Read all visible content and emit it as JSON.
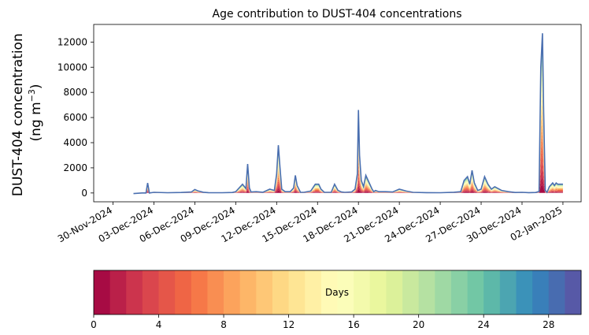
{
  "chart_data": {
    "type": "area",
    "title": "Age contribution to DUST-404 concentrations",
    "ylabel_line1": "DUST-404 concentration",
    "ylabel_line2_prefix": "(ng m",
    "ylabel_line2_sup": "−3",
    "ylabel_line2_suffix": ")",
    "xlabel": "",
    "x_range": [
      "2024-11-28T14:00",
      "2025-01-03T08:00"
    ],
    "ylim": [
      -700,
      13400
    ],
    "y_ticks": [
      0,
      2000,
      4000,
      6000,
      8000,
      10000,
      12000
    ],
    "x_ticks": [
      {
        "date": "2024-11-30",
        "label": "30-Nov-2024"
      },
      {
        "date": "2024-12-03",
        "label": "03-Dec-2024"
      },
      {
        "date": "2024-12-06",
        "label": "06-Dec-2024"
      },
      {
        "date": "2024-12-09",
        "label": "09-Dec-2024"
      },
      {
        "date": "2024-12-12",
        "label": "12-Dec-2024"
      },
      {
        "date": "2024-12-15",
        "label": "15-Dec-2024"
      },
      {
        "date": "2024-12-18",
        "label": "18-Dec-2024"
      },
      {
        "date": "2024-12-21",
        "label": "21-Dec-2024"
      },
      {
        "date": "2024-12-24",
        "label": "24-Dec-2024"
      },
      {
        "date": "2024-12-27",
        "label": "27-Dec-2024"
      },
      {
        "date": "2024-12-30",
        "label": "30-Dec-2024"
      },
      {
        "date": "2025-01-02",
        "label": "02-Jan-2025"
      }
    ],
    "series_days": 30,
    "total_line_color": "#4a6fb0",
    "total_concentration": {
      "x": [
        "2024-12-01T12:00",
        "2024-12-02T03:00",
        "2024-12-02T10:00",
        "2024-12-02T13:00",
        "2024-12-02T16:00",
        "2024-12-03T00:00",
        "2024-12-04T00:00",
        "2024-12-05T00:00",
        "2024-12-05T18:00",
        "2024-12-06T00:00",
        "2024-12-06T06:00",
        "2024-12-06T15:00",
        "2024-12-07T00:00",
        "2024-12-08T00:00",
        "2024-12-08T18:00",
        "2024-12-09T00:00",
        "2024-12-09T12:00",
        "2024-12-09T18:00",
        "2024-12-09T21:00",
        "2024-12-10T00:00",
        "2024-12-10T03:00",
        "2024-12-10T12:00",
        "2024-12-11T00:00",
        "2024-12-11T12:00",
        "2024-12-11T20:00",
        "2024-12-12T00:00",
        "2024-12-12T03:00",
        "2024-12-12T06:00",
        "2024-12-12T09:00",
        "2024-12-12T15:00",
        "2024-12-13T00:00",
        "2024-12-13T06:00",
        "2024-12-13T09:00",
        "2024-12-13T12:00",
        "2024-12-13T18:00",
        "2024-12-14T00:00",
        "2024-12-14T12:00",
        "2024-12-14T20:00",
        "2024-12-15T02:00",
        "2024-12-15T06:00",
        "2024-12-15T12:00",
        "2024-12-16T00:00",
        "2024-12-16T06:00",
        "2024-12-16T12:00",
        "2024-12-16T18:00",
        "2024-12-17T00:00",
        "2024-12-17T12:00",
        "2024-12-17T18:00",
        "2024-12-17T22:00",
        "2024-12-18T00:00",
        "2024-12-18T02:00",
        "2024-12-18T05:00",
        "2024-12-18T09:00",
        "2024-12-18T13:00",
        "2024-12-18T18:00",
        "2024-12-19T00:00",
        "2024-12-19T03:00",
        "2024-12-19T06:00",
        "2024-12-19T12:00",
        "2024-12-20T00:00",
        "2024-12-20T12:00",
        "2024-12-21T00:00",
        "2024-12-21T12:00",
        "2024-12-22T00:00",
        "2024-12-23T00:00",
        "2024-12-24T00:00",
        "2024-12-25T00:00",
        "2024-12-25T12:00",
        "2024-12-25T18:00",
        "2024-12-26T00:00",
        "2024-12-26T04:00",
        "2024-12-26T08:00",
        "2024-12-26T12:00",
        "2024-12-26T18:00",
        "2024-12-27T00:00",
        "2024-12-27T06:00",
        "2024-12-27T12:00",
        "2024-12-27T18:00",
        "2024-12-28T00:00",
        "2024-12-28T12:00",
        "2024-12-29T00:00",
        "2024-12-29T12:00",
        "2024-12-30T00:00",
        "2024-12-30T12:00",
        "2024-12-31T00:00",
        "2024-12-31T06:00",
        "2024-12-31T09:00",
        "2024-12-31T12:00",
        "2024-12-31T14:00",
        "2024-12-31T17:00",
        "2024-12-31T20:00",
        "2025-01-01T00:00",
        "2025-01-01T06:00",
        "2025-01-01T09:00",
        "2025-01-01T12:00",
        "2025-01-01T15:00",
        "2025-01-01T18:00",
        "2025-01-01T21:00",
        "2025-01-02T00:00"
      ],
      "values": [
        -50,
        0,
        0,
        800,
        0,
        50,
        20,
        40,
        80,
        280,
        160,
        60,
        30,
        20,
        40,
        100,
        700,
        350,
        2300,
        400,
        80,
        100,
        60,
        300,
        200,
        1500,
        3800,
        2000,
        300,
        100,
        100,
        400,
        1400,
        600,
        50,
        50,
        150,
        700,
        700,
        300,
        50,
        50,
        700,
        200,
        80,
        50,
        80,
        300,
        1500,
        6600,
        3000,
        1000,
        500,
        1400,
        900,
        300,
        100,
        200,
        100,
        100,
        80,
        300,
        150,
        50,
        30,
        20,
        60,
        100,
        1000,
        1300,
        700,
        1800,
        800,
        200,
        300,
        1300,
        700,
        300,
        500,
        200,
        100,
        40,
        50,
        30,
        40,
        120,
        10000,
        12700,
        6500,
        200,
        50,
        500,
        800,
        600,
        800,
        700,
        700,
        700,
        700
      ]
    },
    "colorbar": {
      "label": "Days",
      "range": [
        0,
        30
      ],
      "ticks": [
        0,
        4,
        8,
        12,
        16,
        20,
        24,
        28
      ],
      "colormap": "Spectral",
      "colors": [
        "#9e0142",
        "#d53e4f",
        "#f46d43",
        "#fdae61",
        "#fee08b",
        "#ffffbf",
        "#e6f598",
        "#abdda4",
        "#66c2a5",
        "#3288bd",
        "#5e4fa2"
      ]
    }
  }
}
